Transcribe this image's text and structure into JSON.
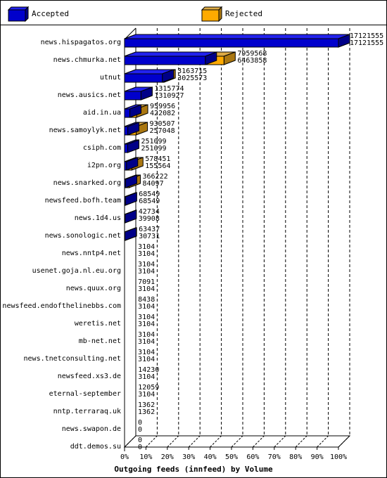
{
  "legend": {
    "accepted_label": "Accepted",
    "rejected_label": "Rejected"
  },
  "colors": {
    "accepted_front": "#0000cc",
    "accepted_side": "#000088",
    "accepted_top": "#2222ee",
    "rejected_front": "#ffaa00",
    "rejected_side": "#aa7711",
    "rejected_top": "#ddaa44",
    "grid": "#000000"
  },
  "chart_data": {
    "type": "bar",
    "orientation": "horizontal",
    "title": "Outgoing feeds (innfeed) by Volume",
    "x_tick_labels": [
      "0%",
      "10%",
      "20%",
      "30%",
      "40%",
      "50%",
      "60%",
      "70%",
      "80%",
      "90%",
      "100%"
    ],
    "xlim": [
      0,
      17121555
    ],
    "grid": true,
    "legend_position": "top",
    "categories": [
      "news.hispagatos.org",
      "news.chmurka.net",
      "utnut",
      "news.ausics.net",
      "aid.in.ua",
      "news.samoylyk.net",
      "csiph.com",
      "i2pn.org",
      "news.snarked.org",
      "newsfeed.bofh.team",
      "news.1d4.us",
      "news.sonologic.net",
      "news.nntp4.net",
      "usenet.goja.nl.eu.org",
      "news.quux.org",
      "newsfeed.endofthelinebbs.com",
      "weretis.net",
      "mb-net.net",
      "news.tnetconsulting.net",
      "newsfeed.xs3.de",
      "eternal-september",
      "nntp.terraraq.uk",
      "news.swapon.de",
      "ddt.demos.su"
    ],
    "series": [
      {
        "name": "Accepted",
        "values": [
          17121555,
          6463858,
          3025573,
          1310927,
          422082,
          257048,
          251099,
          155564,
          84097,
          68549,
          39908,
          30731,
          3104,
          3104,
          3104,
          3104,
          3104,
          3104,
          3104,
          3104,
          3104,
          1362,
          0,
          0
        ]
      },
      {
        "name": "Rejected",
        "values": [
          17121555,
          7959568,
          3163715,
          1315774,
          959956,
          930507,
          251099,
          578451,
          366222,
          68549,
          42734,
          63437,
          3104,
          3104,
          7091,
          8438,
          3104,
          3104,
          3104,
          14230,
          12059,
          1362,
          0,
          0
        ]
      }
    ]
  }
}
